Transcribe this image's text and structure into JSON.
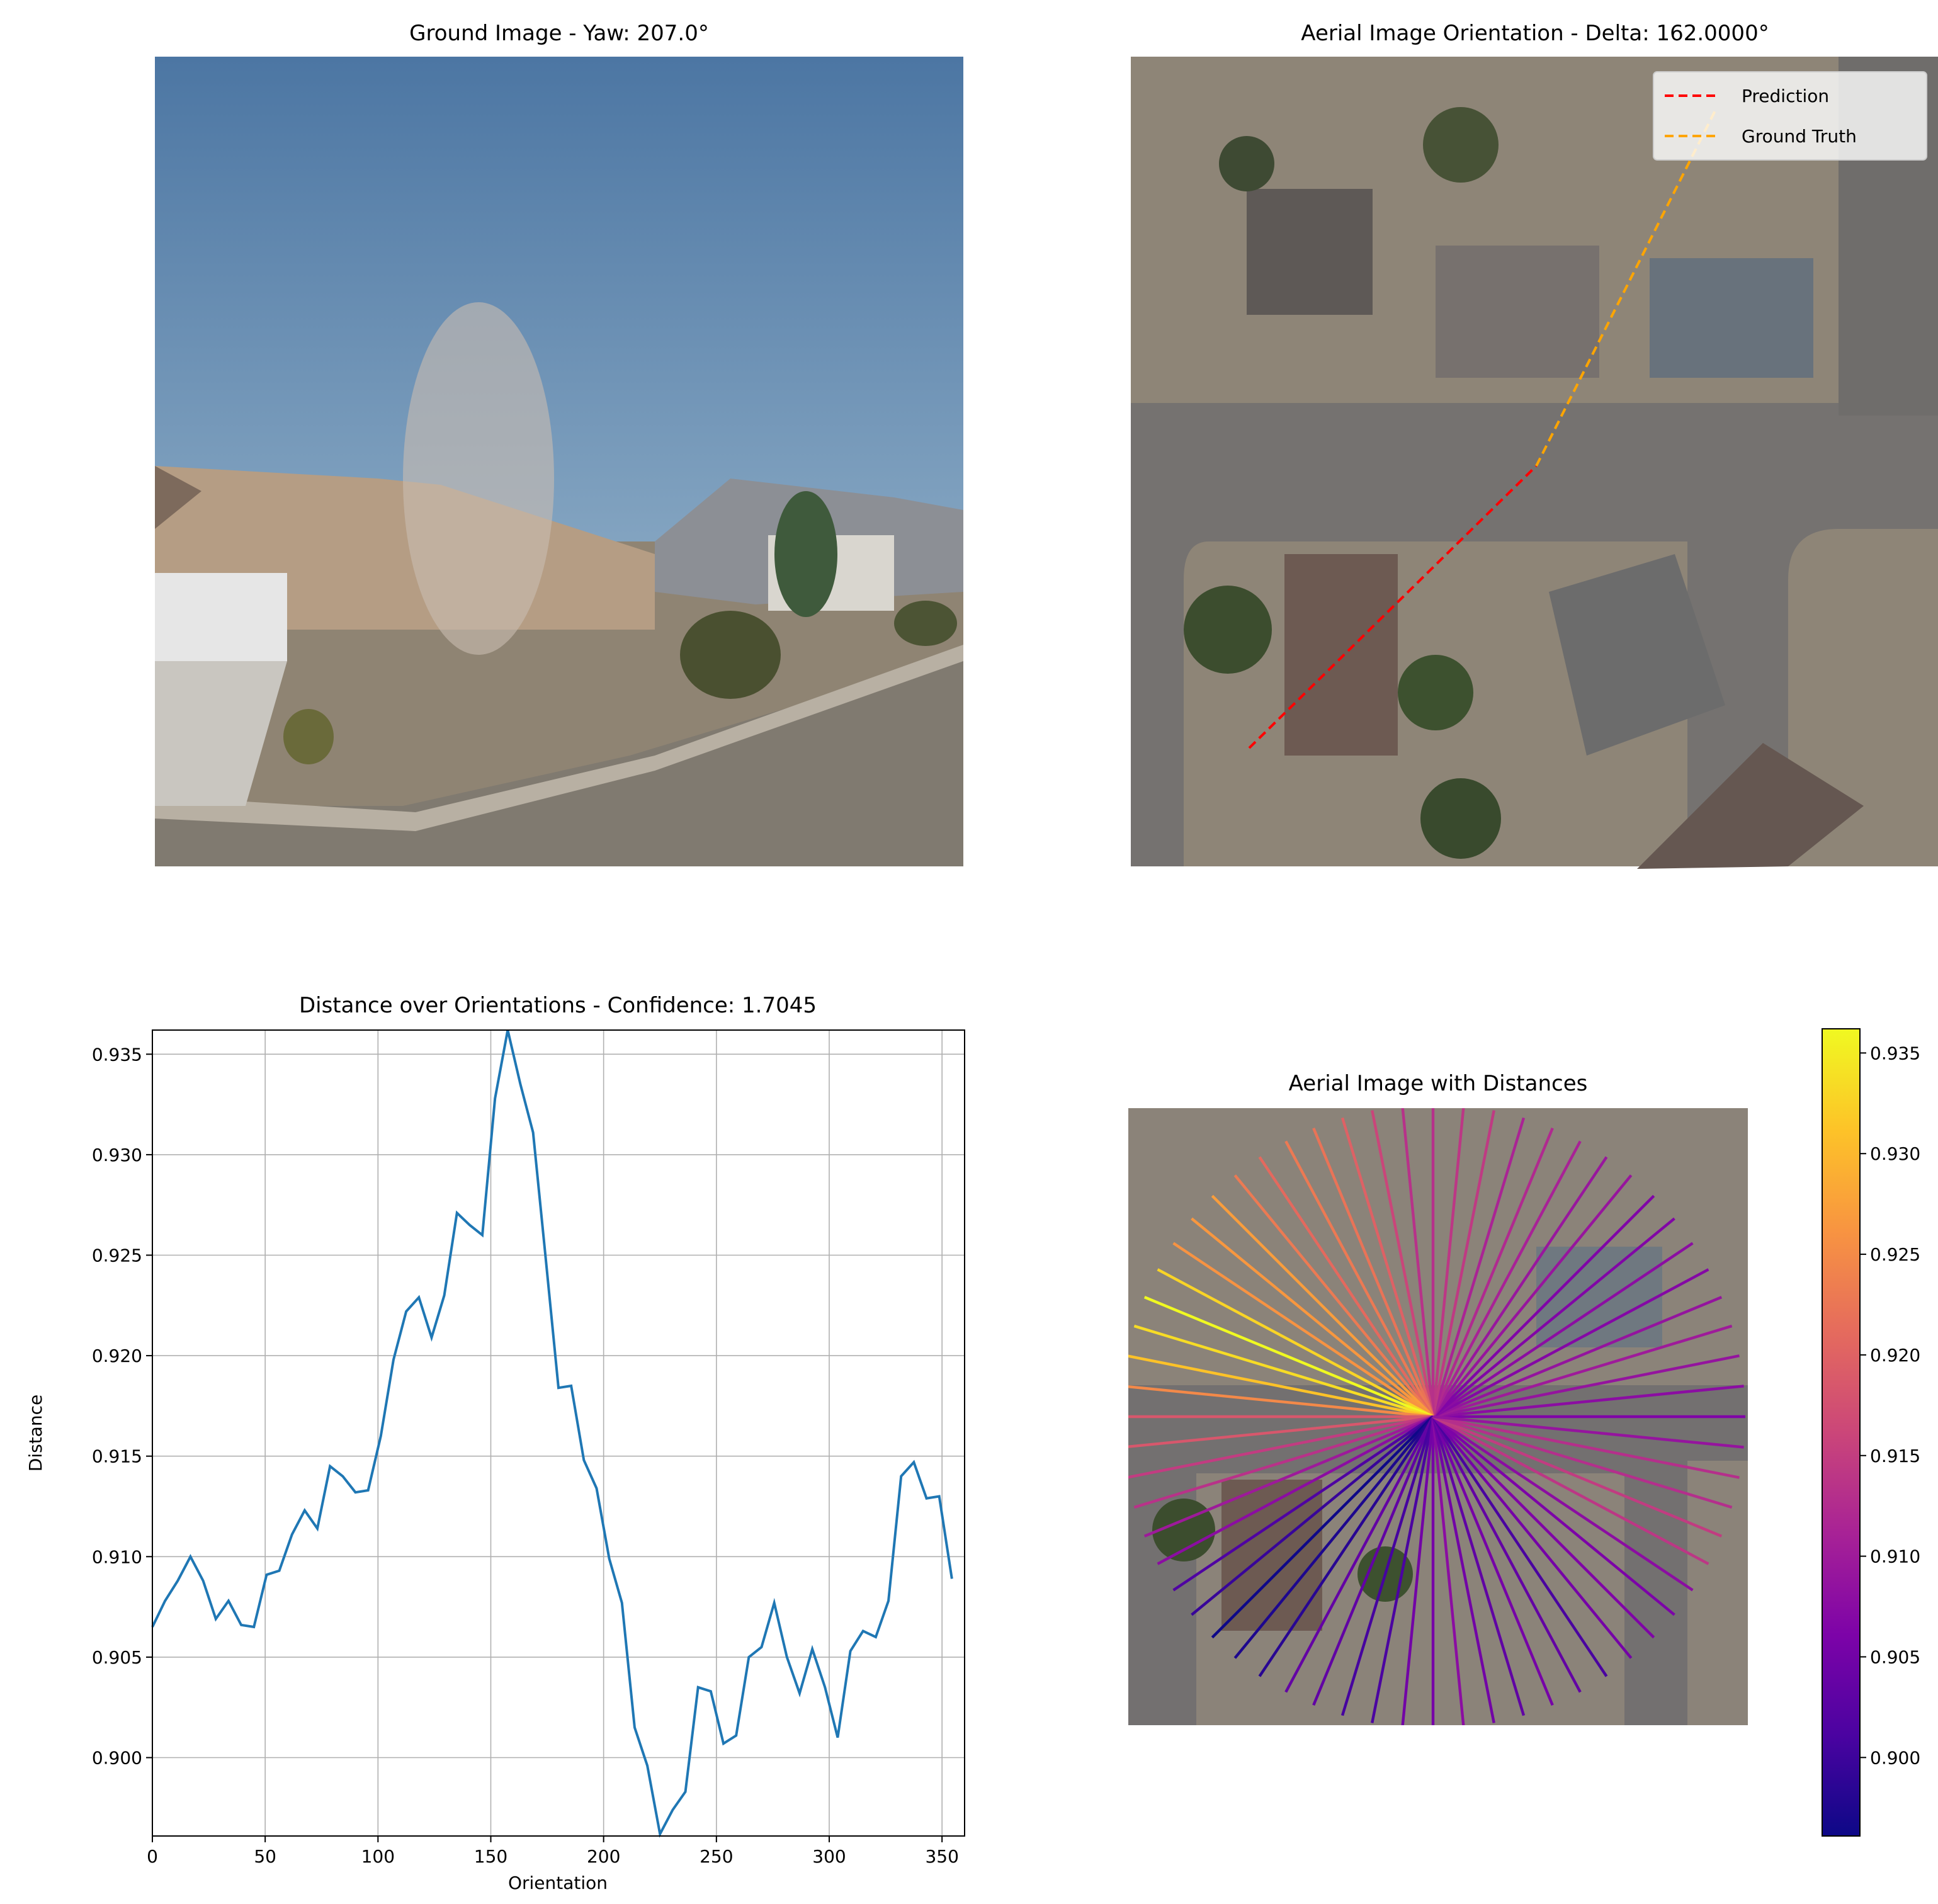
{
  "chart_data": [
    {
      "type": "image",
      "title": "Ground Image - Yaw: 207.0°"
    },
    {
      "type": "image",
      "title": "Aerial Image Orientation - Delta: 162.0000°",
      "series": [
        {
          "name": "Prediction",
          "color": "#ff0000"
        },
        {
          "name": "Ground Truth",
          "color": "#ffa500"
        }
      ]
    },
    {
      "type": "line",
      "title": "Distance over Orientations - Confidence: 1.7045",
      "xlabel": "Orientation",
      "ylabel": "Distance",
      "color": "#1f77b4",
      "grid": true,
      "x": [
        0,
        5.625,
        11.25,
        16.875,
        22.5,
        28.125,
        33.75,
        39.375,
        45,
        50.625,
        56.25,
        61.875,
        67.5,
        73.125,
        78.75,
        84.375,
        90,
        95.625,
        101.25,
        106.875,
        112.5,
        118.125,
        123.75,
        129.375,
        135,
        140.625,
        146.25,
        151.875,
        157.5,
        163.125,
        168.75,
        174.375,
        180,
        185.625,
        191.25,
        196.875,
        202.5,
        208.125,
        213.75,
        219.375,
        225,
        230.625,
        236.25,
        241.875,
        247.5,
        253.125,
        258.75,
        264.375,
        270,
        275.625,
        281.25,
        286.875,
        292.5,
        298.125,
        303.75,
        309.375,
        315,
        320.625,
        326.25,
        331.875,
        337.5,
        343.125,
        348.75,
        354.375
      ],
      "values": [
        0.9065,
        0.9078,
        0.9088,
        0.91,
        0.9088,
        0.9069,
        0.9078,
        0.9066,
        0.9065,
        0.9091,
        0.9093,
        0.9111,
        0.9123,
        0.9114,
        0.9145,
        0.914,
        0.9132,
        0.9133,
        0.916,
        0.9198,
        0.9222,
        0.9229,
        0.9209,
        0.923,
        0.9271,
        0.9265,
        0.926,
        0.9328,
        0.9362,
        0.9335,
        0.9311,
        0.9248,
        0.9184,
        0.9185,
        0.9148,
        0.9134,
        0.9099,
        0.9077,
        0.9015,
        0.8996,
        0.8962,
        0.8974,
        0.8983,
        0.9035,
        0.9033,
        0.9007,
        0.9011,
        0.905,
        0.9055,
        0.9077,
        0.905,
        0.9032,
        0.9054,
        0.9035,
        0.901,
        0.9053,
        0.9063,
        0.906,
        0.9078,
        0.914,
        0.9147,
        0.9129,
        0.913,
        0.9089
      ],
      "xlim": [
        0,
        360
      ],
      "xticks": [
        0,
        50,
        100,
        150,
        200,
        250,
        300,
        350
      ],
      "ylim": [
        0.8961,
        0.9362
      ],
      "yticks": [
        {
          "value": 0.9,
          "label": "0.900"
        },
        {
          "value": 0.905,
          "label": "0.905"
        },
        {
          "value": 0.91,
          "label": "0.910"
        },
        {
          "value": 0.915,
          "label": "0.915"
        },
        {
          "value": 0.92,
          "label": "0.920"
        },
        {
          "value": 0.925,
          "label": "0.925"
        },
        {
          "value": 0.93,
          "label": "0.930"
        },
        {
          "value": 0.935,
          "label": "0.935"
        }
      ]
    },
    {
      "type": "radial",
      "title": "Aerial Image with Distances",
      "colormap": "plasma",
      "clim": [
        0.8961,
        0.9362
      ],
      "cticks": [
        {
          "value": 0.9,
          "label": "0.900"
        },
        {
          "value": 0.905,
          "label": "0.905"
        },
        {
          "value": 0.91,
          "label": "0.910"
        },
        {
          "value": 0.915,
          "label": "0.915"
        },
        {
          "value": 0.92,
          "label": "0.920"
        },
        {
          "value": 0.925,
          "label": "0.925"
        },
        {
          "value": 0.93,
          "label": "0.930"
        },
        {
          "value": 0.935,
          "label": "0.935"
        }
      ]
    }
  ]
}
